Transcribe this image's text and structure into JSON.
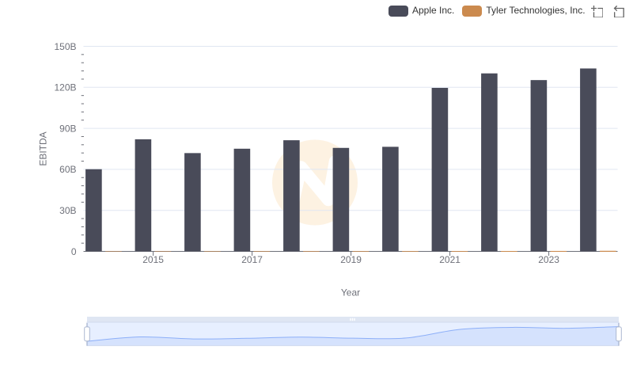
{
  "legend": {
    "items": [
      {
        "label": "Apple Inc.",
        "color": "#494b59"
      },
      {
        "label": "Tyler Technologies, Inc.",
        "color": "#cb8a4e"
      }
    ]
  },
  "toolbox": {
    "icons": [
      "zoom-select-icon",
      "zoom-restore-icon"
    ]
  },
  "chart_data": {
    "type": "bar",
    "title": "",
    "xlabel": "Year",
    "ylabel": "EBITDA",
    "categories": [
      2014,
      2015,
      2016,
      2017,
      2018,
      2019,
      2020,
      2021,
      2022,
      2023,
      2024
    ],
    "x_tick_labels": [
      "2015",
      "2017",
      "2019",
      "2021",
      "2023"
    ],
    "x_tick_years": [
      2015,
      2017,
      2019,
      2021,
      2023
    ],
    "series": [
      {
        "name": "Apple Inc.",
        "color": "#494b59",
        "values": [
          60.1,
          82.0,
          71.9,
          75.1,
          81.3,
          75.7,
          76.5,
          119.6,
          130.2,
          125.3,
          133.8
        ]
      },
      {
        "name": "Tyler Technologies, Inc.",
        "color": "#cb8a4e",
        "values": [
          0.11,
          0.13,
          0.18,
          0.22,
          0.25,
          0.28,
          0.31,
          0.36,
          0.4,
          0.44,
          0.54
        ]
      }
    ],
    "ylim": [
      0,
      150
    ],
    "y_ticks": [
      0,
      30,
      60,
      90,
      120,
      150
    ],
    "y_tick_labels": [
      "0",
      "30B",
      "60B",
      "90B",
      "120B",
      "150B"
    ],
    "y_minor_tick_step": 6,
    "grid": true,
    "legend_position": "top-right",
    "colors": {
      "grid_line": "#E0E6F1",
      "axis_line": "#6E7079",
      "axis_label": "#6E7079",
      "axis_name": "#6E7079",
      "legend_text": "#333333",
      "toolbox_icon": "#666666",
      "watermark_circle": "#fdf2e2",
      "watermark_glyph": "#ffffff",
      "slider_border": "#d2dbee",
      "slider_move_handle": "#d2dbee",
      "slider_shadow_line": "#8fb0f7",
      "slider_shadow_area": "rgba(143,176,247,0.2)",
      "slider_filler": "rgba(135,175,255,0.2)",
      "slider_handle_fill": "#ffffff",
      "slider_handle_border": "#ACB8D1"
    }
  }
}
